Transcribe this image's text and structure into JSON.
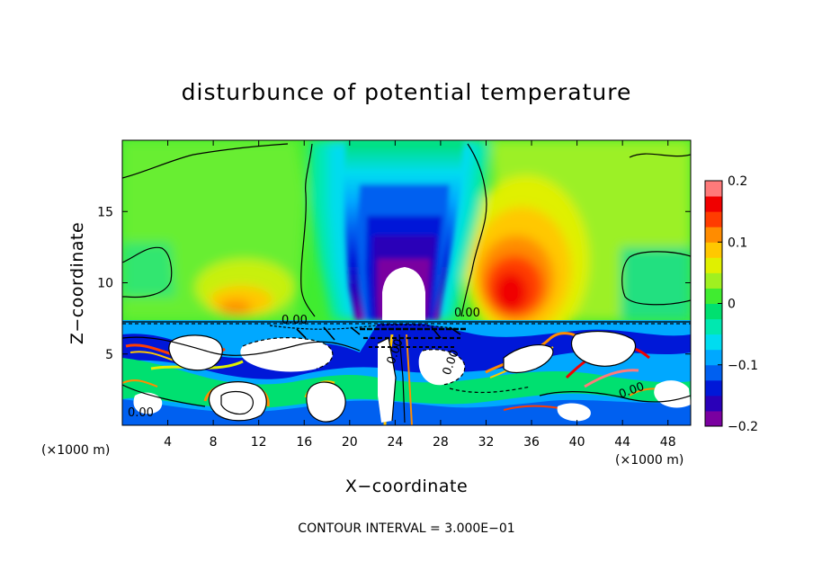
{
  "chart_data": {
    "type": "heatmap",
    "title": "disturbunce of potential temperature",
    "xlabel": "X−coordinate",
    "ylabel": "Z−coordinate",
    "x_unit_note": "(×1000 m)",
    "x_range": [
      0,
      50
    ],
    "y_range": [
      0,
      20
    ],
    "x_ticks": [
      4,
      8,
      12,
      16,
      20,
      24,
      28,
      32,
      36,
      40,
      44,
      48
    ],
    "y_ticks": [
      5,
      10,
      15
    ],
    "colorbar": {
      "range": [
        -0.2,
        0.2
      ],
      "tick_values": [
        0.2,
        0.1,
        0,
        -0.1,
        -0.2
      ],
      "tick_labels": [
        "0.2",
        "0.1",
        "0",
        "−0.1",
        "−0.2"
      ],
      "colors": [
        "#7a00a0",
        "#2a00b8",
        "#0018d8",
        "#0060f0",
        "#00a8ff",
        "#00dcf0",
        "#00e8b0",
        "#00e070",
        "#40ec30",
        "#a0f020",
        "#e0f000",
        "#ffc800",
        "#ff8c00",
        "#ff3c00",
        "#f00000",
        "#ff7a7a"
      ]
    },
    "contour_interval_text": "CONTOUR INTERVAL = 3.000E−01",
    "contour_labels": [
      "0.00",
      "0.00",
      "0.00",
      "0.00",
      "0.00",
      "0.00"
    ],
    "features": [
      {
        "kind": "negative_anomaly",
        "x": 24,
        "z_min": 9,
        "z_max": 20,
        "min_value": -0.2
      },
      {
        "kind": "positive_anomaly",
        "x": 36,
        "z": 10.5,
        "max_value": 0.16
      },
      {
        "kind": "positive_anomaly",
        "x": 12,
        "z": 9.5,
        "max_value": 0.07
      },
      {
        "kind": "saturated_region",
        "x": 24,
        "z_min": 7.3,
        "z_max": 10.5
      },
      {
        "kind": "turbulent_layer",
        "z_min": 0,
        "z_max": 7.3
      }
    ]
  }
}
